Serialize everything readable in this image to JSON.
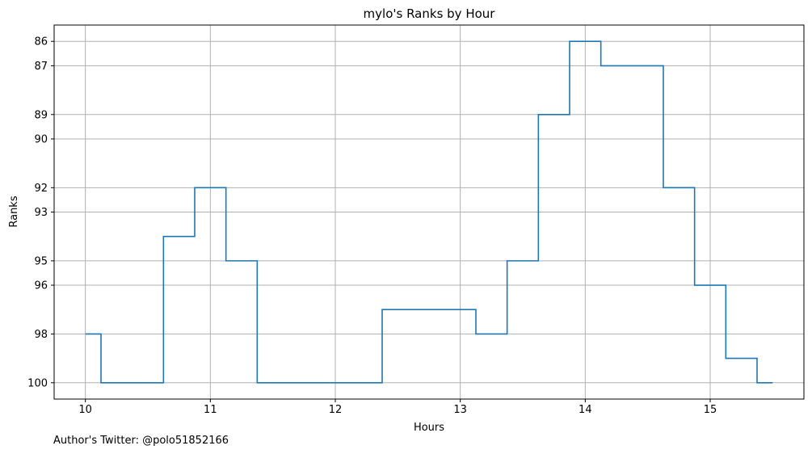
{
  "chart_data": {
    "type": "line",
    "title": "mylo's Ranks by Hour",
    "xlabel": "Hours",
    "ylabel": "Ranks",
    "y_inverted": true,
    "step": "mid",
    "grid": true,
    "x_ticks": [
      10,
      11,
      12,
      13,
      14,
      15
    ],
    "y_ticks": [
      86,
      87,
      89,
      90,
      92,
      93,
      95,
      96,
      98,
      100
    ],
    "xlim": [
      9.75,
      15.75
    ],
    "ylim": [
      100.67,
      85.33
    ],
    "series_color": "#1f77b4",
    "x": [
      10.0,
      10.25,
      10.5,
      10.75,
      11.0,
      11.25,
      11.5,
      11.75,
      12.0,
      12.25,
      12.5,
      12.75,
      13.0,
      13.25,
      13.5,
      13.75,
      14.0,
      14.25,
      14.5,
      14.75,
      15.0,
      15.25,
      15.5
    ],
    "values": [
      98,
      100,
      100,
      94,
      92,
      95,
      100,
      100,
      100,
      100,
      97,
      97,
      97,
      98,
      95,
      89,
      86,
      87,
      87,
      92,
      96,
      99,
      100
    ]
  },
  "footnote": "Author's Twitter: @polo51852166"
}
